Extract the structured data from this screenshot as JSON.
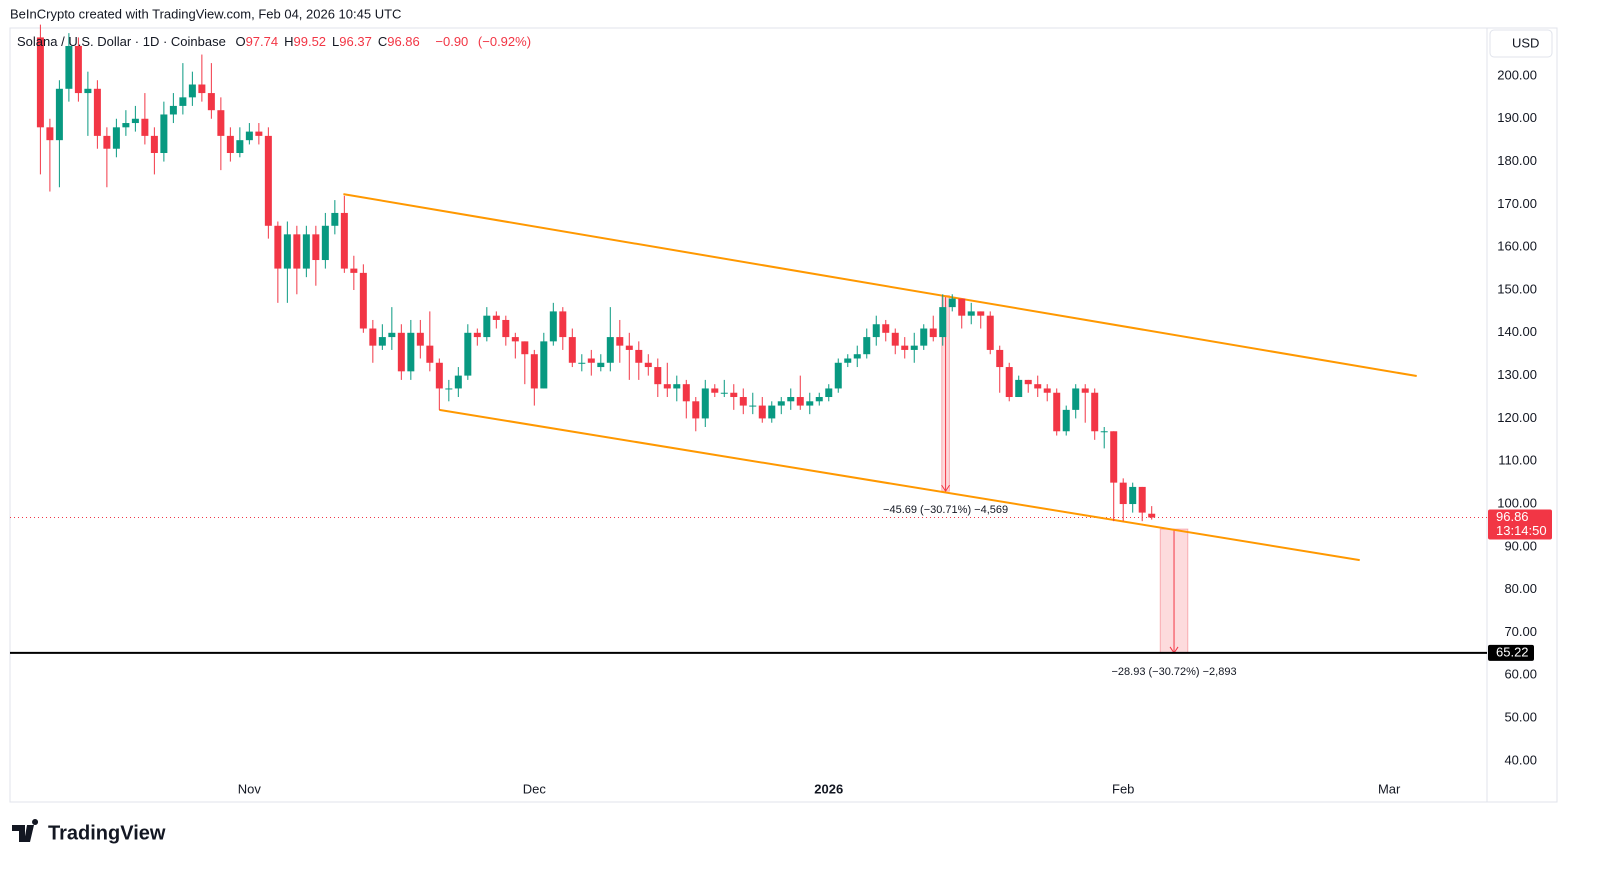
{
  "header": {
    "attribution": "BeInCrypto created with TradingView.com, Feb 04, 2026 10:45 UTC",
    "logo": "TradingView"
  },
  "chart_data": {
    "type": "candlestick",
    "symbol": "Solana / U.S. Dollar · 1D · Coinbase",
    "ohlc_legend": [
      {
        "key": "O",
        "value": 97.74
      },
      {
        "key": "H",
        "value": 99.52
      },
      {
        "key": "L",
        "value": 96.37
      },
      {
        "key": "C",
        "value": 96.86
      }
    ],
    "change": {
      "value": -0.9,
      "label": "−0.90"
    },
    "change_pct": {
      "value": -0.92,
      "label": "(−0.92%)"
    },
    "currency": "USD",
    "up_color": "#089981",
    "down_color": "#f23645",
    "open": [
      209,
      188,
      185,
      197,
      207,
      196,
      197,
      186,
      183,
      188,
      189,
      190,
      186,
      182,
      191,
      193,
      195,
      198,
      196,
      192,
      186,
      182,
      185,
      187,
      186,
      165,
      155,
      163,
      155,
      163,
      157,
      165,
      168,
      155,
      154,
      141,
      137,
      139,
      140,
      131,
      140,
      137,
      133,
      127,
      127,
      130,
      140,
      139,
      144,
      143,
      139,
      138,
      135,
      127,
      138,
      145,
      139,
      133,
      134,
      132,
      133,
      139,
      137,
      136,
      133,
      132,
      128,
      127,
      128,
      124,
      120,
      127,
      126,
      126,
      125,
      123,
      123,
      120,
      123,
      124,
      125,
      123,
      124,
      125,
      127,
      133,
      134,
      135,
      139,
      142,
      140,
      137,
      136,
      137,
      141,
      139,
      146,
      148,
      144,
      145,
      144,
      136,
      132,
      125,
      129,
      128,
      127,
      126,
      117,
      122,
      127,
      126,
      117,
      117,
      105,
      100,
      104,
      97.74
    ],
    "high": [
      212,
      190,
      199,
      210,
      209,
      201,
      199,
      188,
      190,
      192,
      193,
      196,
      188,
      194,
      196,
      203,
      201,
      205,
      203,
      195,
      188,
      188,
      189,
      189,
      188,
      166,
      166,
      165,
      165,
      165,
      168,
      171,
      172,
      158,
      156,
      143,
      142,
      146,
      142,
      143,
      143,
      145,
      134,
      129,
      132,
      142,
      141,
      146,
      145,
      144,
      140,
      138,
      136,
      140,
      147,
      146,
      141,
      135,
      136,
      135,
      146,
      143,
      140,
      138,
      135,
      134,
      133,
      130,
      129,
      125,
      129,
      128,
      129,
      128,
      127,
      126,
      125,
      124,
      125,
      127,
      130,
      126,
      126,
      128,
      134,
      135,
      137,
      141,
      144,
      143,
      141,
      139,
      140,
      142,
      144,
      149,
      149,
      148,
      147,
      145,
      145,
      137,
      133,
      130,
      129,
      130,
      128,
      127,
      123,
      128,
      128,
      127,
      118,
      117,
      106,
      105,
      104,
      99.52
    ],
    "low": [
      177,
      173,
      174,
      194,
      194,
      186,
      183,
      174,
      181,
      186,
      187,
      184,
      177,
      180,
      189,
      191,
      193,
      194,
      190,
      178,
      180,
      181,
      184,
      184,
      162,
      147,
      147,
      149,
      153,
      151,
      155,
      163,
      154,
      150,
      140,
      133,
      136,
      136,
      129,
      129,
      134,
      131,
      122,
      124,
      125,
      129,
      137,
      138,
      141,
      137,
      134,
      128,
      123,
      127,
      137,
      136,
      132,
      131,
      130,
      131,
      131,
      133,
      129,
      129,
      130,
      125,
      125,
      124,
      120,
      117,
      118,
      125,
      125,
      122,
      121,
      121,
      119,
      119,
      121,
      122,
      122,
      121,
      123,
      124,
      126,
      132,
      132,
      134,
      137,
      138,
      135,
      134,
      133,
      136,
      138,
      137,
      145,
      141,
      142,
      141,
      135,
      126,
      124,
      125,
      126,
      125,
      124,
      116,
      116,
      120,
      119,
      115,
      113,
      96,
      96,
      98,
      96,
      96.37
    ],
    "close": [
      188,
      185,
      197,
      207,
      196,
      197,
      186,
      183,
      188,
      189,
      190,
      186,
      182,
      191,
      193,
      195,
      198,
      196,
      192,
      186,
      182,
      185,
      187,
      186,
      165,
      155,
      163,
      155,
      163,
      157,
      165,
      168,
      155,
      154,
      141,
      137,
      139,
      140,
      131,
      140,
      137,
      133,
      127,
      127,
      130,
      140,
      139,
      144,
      143,
      139,
      138,
      135,
      127,
      138,
      145,
      139,
      133,
      133,
      133,
      133,
      139,
      137,
      136,
      133,
      132,
      128,
      127,
      128,
      124,
      120,
      127,
      126,
      126,
      125,
      123,
      123,
      120,
      123,
      124,
      125,
      123,
      124,
      125,
      127,
      133,
      134,
      135,
      139,
      142,
      140,
      137,
      136,
      137,
      141,
      139,
      146,
      148,
      144,
      145,
      144,
      136,
      132,
      125,
      129,
      128,
      127,
      126,
      117,
      122,
      127,
      126,
      117,
      117,
      105,
      100,
      104,
      98,
      96.86
    ],
    "xlim": [
      -3.2,
      152.3
    ],
    "xticks": [
      {
        "value": 22,
        "label": "Nov"
      },
      {
        "value": 52,
        "label": "Dec"
      },
      {
        "value": 83,
        "label": "2026"
      },
      {
        "value": 114,
        "label": "Feb"
      },
      {
        "value": 142,
        "label": "Mar"
      }
    ],
    "ylim": [
      30.4,
      211.2
    ],
    "yticks": [
      {
        "value": 40,
        "label": "40.00"
      },
      {
        "value": 50,
        "label": "50.00"
      },
      {
        "value": 60,
        "label": "60.00"
      },
      {
        "value": 70,
        "label": "70.00"
      },
      {
        "value": 80,
        "label": "80.00"
      },
      {
        "value": 90,
        "label": "90.00"
      },
      {
        "value": 100,
        "label": "100.00"
      },
      {
        "value": 110,
        "label": "110.00"
      },
      {
        "value": 120,
        "label": "120.00"
      },
      {
        "value": 130,
        "label": "130.00"
      },
      {
        "value": 140,
        "label": "140.00"
      },
      {
        "value": 150,
        "label": "150.00"
      },
      {
        "value": 160,
        "label": "160.00"
      },
      {
        "value": 170,
        "label": "170.00"
      },
      {
        "value": 180,
        "label": "180.00"
      },
      {
        "value": 190,
        "label": "190.00"
      },
      {
        "value": 200,
        "label": "200.00"
      }
    ],
    "last_price": 96.86,
    "countdown": "13:14:50",
    "target": 65.22,
    "trendline_color": "#ff9800",
    "trendlines": [
      {
        "x": [
          31.9,
          144.9
        ],
        "y": [
          172.4,
          129.9
        ]
      },
      {
        "x": [
          42.0,
          138.9
        ],
        "y": [
          122.0,
          86.9
        ]
      }
    ],
    "measurements": [
      {
        "x0": 94.9,
        "x1": 95.7,
        "from": 148.7,
        "to": 103.01,
        "label": "−45.69 (−30.71%) −4,569"
      },
      {
        "x0": 117.9,
        "x1": 120.8,
        "from": 94.15,
        "to": 65.22,
        "label": "−28.93 (−30.72%) −2,893"
      }
    ]
  }
}
